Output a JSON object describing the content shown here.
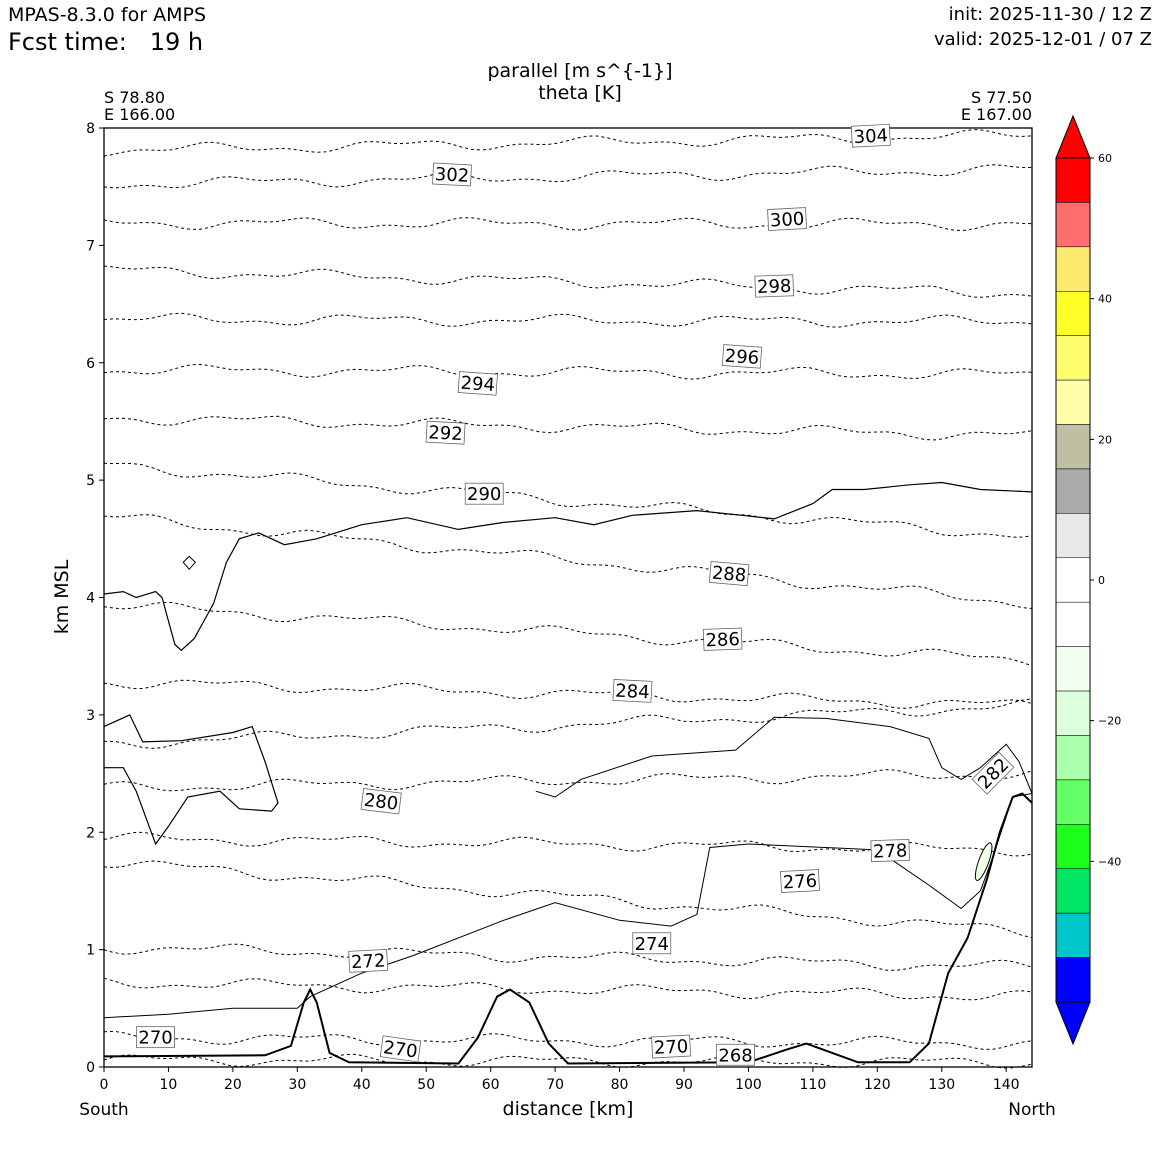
{
  "header": {
    "model": "MPAS-8.3.0 for AMPS",
    "fcst_label": "Fcst time:",
    "fcst_value": "19 h",
    "init": "init: 2025-11-30 / 12 Z",
    "valid": "valid: 2025-12-01 / 07 Z"
  },
  "section": {
    "left_lat": "S 78.80",
    "left_lon": "E 166.00",
    "right_lat": "S 77.50",
    "right_lon": "E 167.00",
    "left_end": "South",
    "right_end": "North"
  },
  "chart_data": {
    "type": "contour",
    "title_lines": [
      "parallel [m s^{-1}]",
      "theta [K]"
    ],
    "xlabel": "distance [km]",
    "ylabel": "km MSL",
    "xlim": [
      0,
      144
    ],
    "ylim": [
      0,
      8
    ],
    "x_ticks": [
      "0",
      "10",
      "20",
      "30",
      "40",
      "50",
      "60",
      "70",
      "80",
      "90",
      "100",
      "110",
      "120",
      "130",
      "140"
    ],
    "y_ticks": [
      "0",
      "1",
      "2",
      "3",
      "4",
      "5",
      "6",
      "7",
      "8"
    ],
    "colorbar": {
      "min": -60,
      "max": 60,
      "step": 6,
      "tick_values": [
        60,
        40,
        20,
        0,
        -20,
        -40
      ],
      "tick_labels": [
        "60",
        "40",
        "20",
        "0",
        "−20",
        "−40"
      ],
      "colors_top_to_bottom": [
        "#ff0000",
        "#ff6e6e",
        "#ffe86e",
        "#ffff28",
        "#ffff6e",
        "#ffffaa",
        "#bfbfa3",
        "#aaaaaa",
        "#e8e8e8",
        "#ffffff",
        "#ffffff",
        "#f5fff0",
        "#dcffdc",
        "#aaffaa",
        "#64ff64",
        "#1eff1e",
        "#00e664",
        "#00c8c8",
        "#0000ff"
      ],
      "extend_max_color": "#ff0000",
      "extend_min_color": "#0000ff"
    },
    "theta_label_values": [
      "304",
      "302",
      "300",
      "298",
      "296",
      "294",
      "292",
      "290",
      "288",
      "286",
      "284",
      "282",
      "280",
      "278",
      "276",
      "274",
      "272",
      "270",
      "270",
      "270",
      "268"
    ],
    "theta_isentropes_left_km": [
      {
        "theta": 268,
        "y0": 0.06
      },
      {
        "theta": 270,
        "y0": 0.25
      },
      {
        "theta": 272,
        "y0": 0.72
      },
      {
        "theta": 274,
        "y0": 1.02
      },
      {
        "theta": 276,
        "y0": 1.75
      },
      {
        "theta": 278,
        "y0": 1.95
      },
      {
        "theta": 280,
        "y0": 2.38
      },
      {
        "theta": 282,
        "y0": 2.75
      },
      {
        "theta": 284,
        "y0": 3.28
      },
      {
        "theta": 286,
        "y0": 3.94
      },
      {
        "theta": 288,
        "y0": 4.69
      },
      {
        "theta": 290,
        "y0": 5.13
      },
      {
        "theta": 292,
        "y0": 5.53
      },
      {
        "theta": 294,
        "y0": 5.94
      },
      {
        "theta": 296,
        "y0": 6.37
      },
      {
        "theta": 298,
        "y0": 6.79
      },
      {
        "theta": 300,
        "y0": 7.19
      },
      {
        "theta": 302,
        "y0": 7.52
      },
      {
        "theta": 304,
        "y0": 7.81
      }
    ],
    "theta_isentropes_right_km": [
      {
        "theta": 268,
        "y0": 0.04
      },
      {
        "theta": 270,
        "y0": 0.2
      },
      {
        "theta": 272,
        "y0": 0.6
      },
      {
        "theta": 274,
        "y0": 0.85
      },
      {
        "theta": 276,
        "y0": 1.15
      },
      {
        "theta": 278,
        "y0": 1.85
      },
      {
        "theta": 280,
        "y0": 2.5
      },
      {
        "theta": 282,
        "y0": 3.08
      },
      {
        "theta": 284,
        "y0": 3.08
      },
      {
        "theta": 286,
        "y0": 3.46
      },
      {
        "theta": 288,
        "y0": 3.95
      },
      {
        "theta": 290,
        "y0": 4.52
      },
      {
        "theta": 292,
        "y0": 5.38
      },
      {
        "theta": 294,
        "y0": 5.9
      },
      {
        "theta": 296,
        "y0": 6.35
      },
      {
        "theta": 298,
        "y0": 6.59
      },
      {
        "theta": 300,
        "y0": 7.18
      },
      {
        "theta": 302,
        "y0": 7.65
      },
      {
        "theta": 304,
        "y0": 7.94
      }
    ],
    "terrain_km": [
      [
        0,
        0.09
      ],
      [
        25,
        0.1
      ],
      [
        29,
        0.18
      ],
      [
        31,
        0.55
      ],
      [
        32,
        0.66
      ],
      [
        33,
        0.55
      ],
      [
        35,
        0.12
      ],
      [
        38,
        0.04
      ],
      [
        55,
        0.03
      ],
      [
        58,
        0.25
      ],
      [
        61,
        0.6
      ],
      [
        63,
        0.66
      ],
      [
        66,
        0.55
      ],
      [
        69,
        0.2
      ],
      [
        72,
        0.03
      ],
      [
        100,
        0.04
      ],
      [
        106,
        0.15
      ],
      [
        109,
        0.2
      ],
      [
        113,
        0.12
      ],
      [
        117,
        0.04
      ],
      [
        125,
        0.04
      ],
      [
        128,
        0.2
      ],
      [
        131,
        0.8
      ],
      [
        134,
        1.1
      ],
      [
        137,
        1.6
      ],
      [
        139,
        2.0
      ],
      [
        141,
        2.3
      ],
      [
        142.5,
        2.33
      ],
      [
        144,
        2.25
      ]
    ]
  }
}
